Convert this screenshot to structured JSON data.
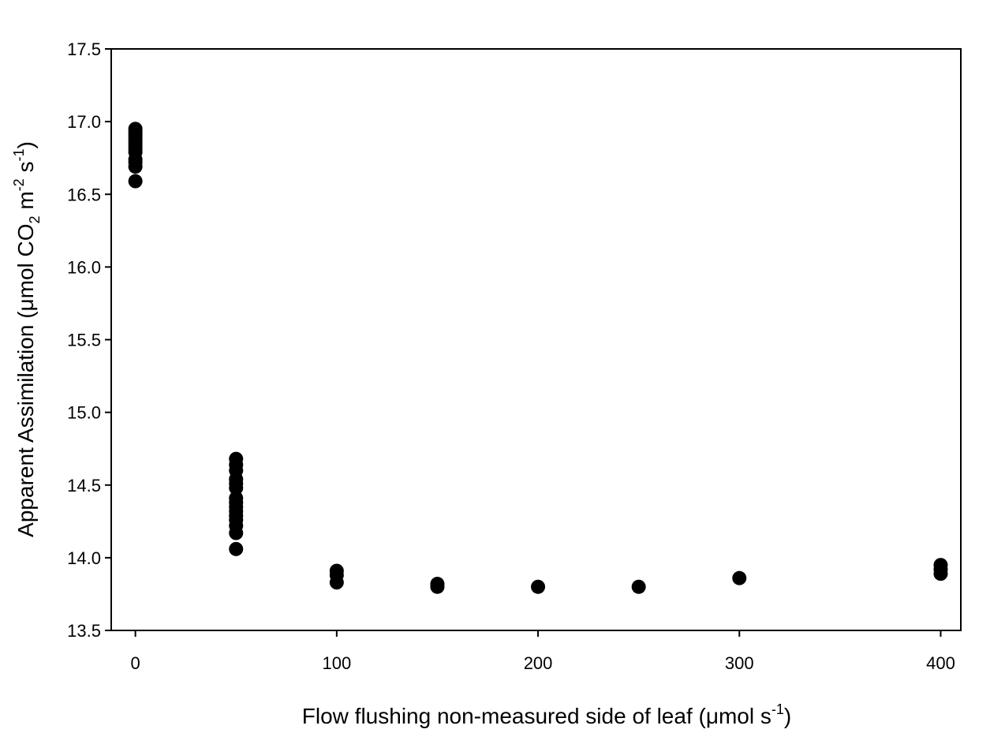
{
  "chart_data": {
    "type": "scatter",
    "title": "",
    "xlabel": {
      "main": "Flow flushing non-measured side of leaf (μmol s",
      "sup": "-1",
      "end": ")"
    },
    "ylabel": {
      "main": "Apparent Assimilation (μmol CO",
      "sub": "2",
      "mid1": " m",
      "sup1": "-2",
      "mid2": " s",
      "sup2": "-1",
      "end": ")"
    },
    "xlim": [
      -12,
      410
    ],
    "ylim": [
      13.5,
      17.5
    ],
    "xticks": [
      0,
      100,
      200,
      300,
      400
    ],
    "xtick_labels": [
      "0",
      "100",
      "200",
      "300",
      "400"
    ],
    "yticks": [
      13.5,
      14.0,
      14.5,
      15.0,
      15.5,
      16.0,
      16.5,
      17.0,
      17.5
    ],
    "ytick_labels": [
      "13.5",
      "14.0",
      "14.5",
      "15.0",
      "15.5",
      "16.0",
      "16.5",
      "17.0",
      "17.5"
    ],
    "grid": false,
    "marker_color": "#000000",
    "series": [
      {
        "points": [
          [
            0,
            16.95
          ],
          [
            0,
            16.93
          ],
          [
            0,
            16.91
          ],
          [
            0,
            16.89
          ],
          [
            0,
            16.87
          ],
          [
            0,
            16.85
          ],
          [
            0,
            16.83
          ],
          [
            0,
            16.81
          ],
          [
            0,
            16.79
          ],
          [
            0,
            16.74
          ],
          [
            0,
            16.72
          ],
          [
            0,
            16.69
          ],
          [
            0,
            16.59
          ],
          [
            50,
            14.68
          ],
          [
            50,
            14.64
          ],
          [
            50,
            14.6
          ],
          [
            50,
            14.54
          ],
          [
            50,
            14.51
          ],
          [
            50,
            14.48
          ],
          [
            50,
            14.41
          ],
          [
            50,
            14.38
          ],
          [
            50,
            14.35
          ],
          [
            50,
            14.32
          ],
          [
            50,
            14.29
          ],
          [
            50,
            14.26
          ],
          [
            50,
            14.22
          ],
          [
            50,
            14.17
          ],
          [
            50,
            14.06
          ],
          [
            100,
            13.91
          ],
          [
            100,
            13.88
          ],
          [
            100,
            13.83
          ],
          [
            150,
            13.82
          ],
          [
            150,
            13.8
          ],
          [
            200,
            13.8
          ],
          [
            250,
            13.8
          ],
          [
            300,
            13.86
          ],
          [
            400,
            13.95
          ],
          [
            400,
            13.92
          ],
          [
            400,
            13.89
          ]
        ]
      }
    ]
  }
}
